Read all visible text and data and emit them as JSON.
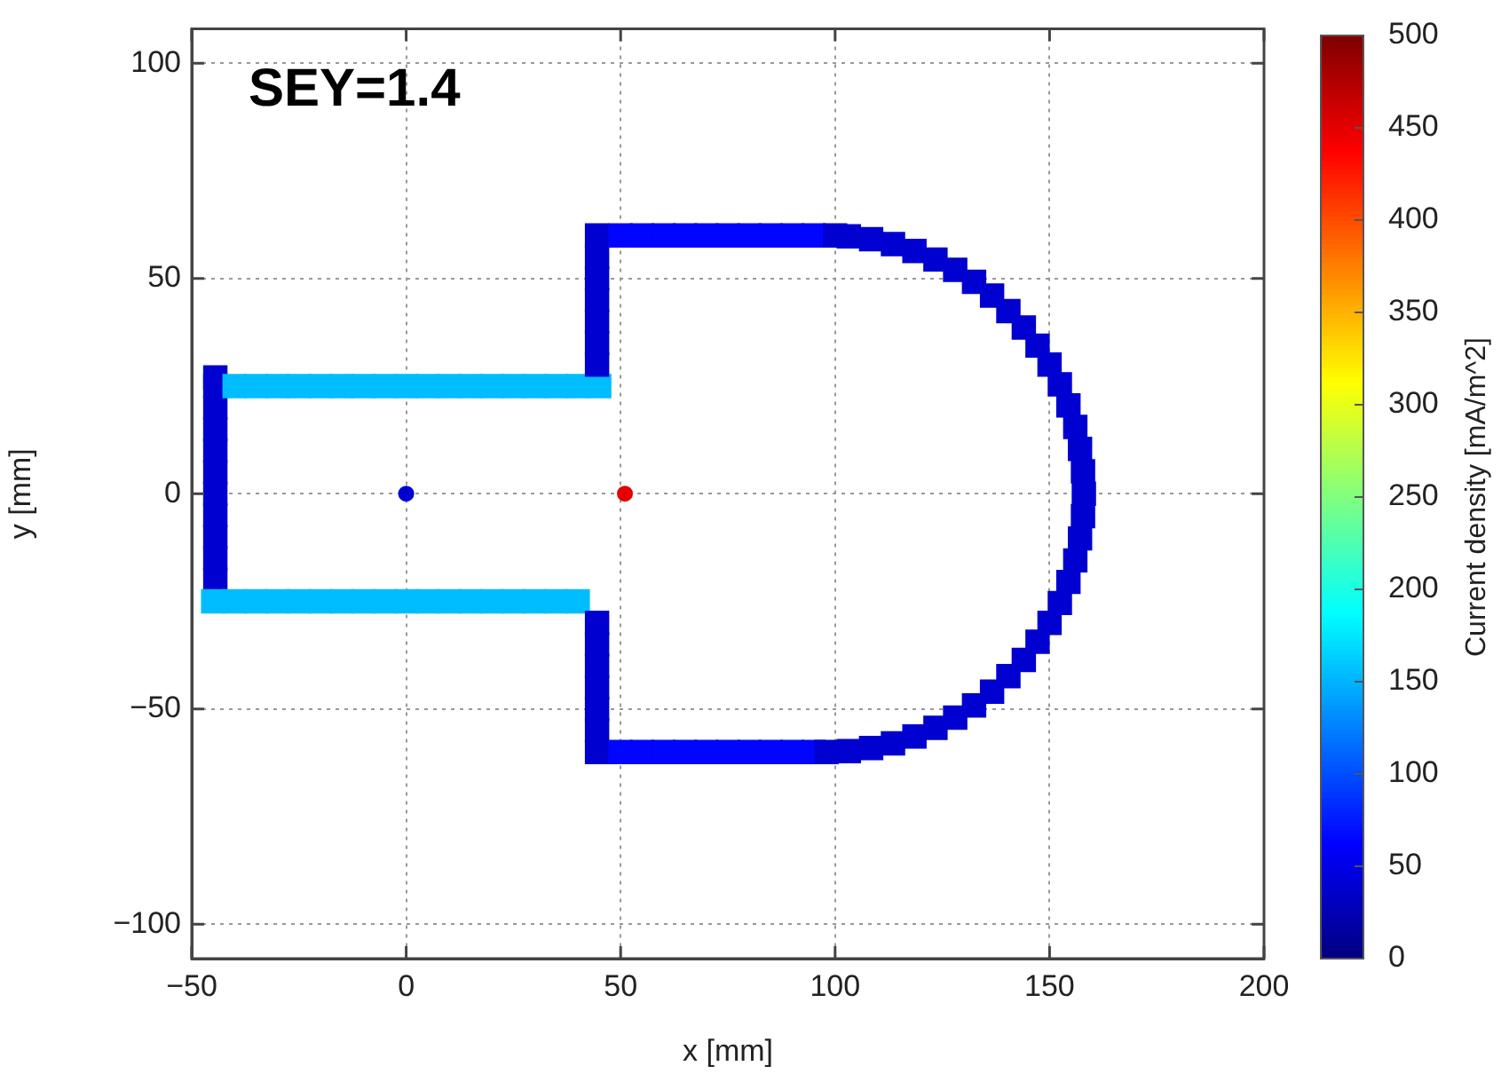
{
  "chart_data": {
    "type": "scatter",
    "xlabel": "x [mm]",
    "ylabel": "y [mm]",
    "clabel": "Current density [mA/m^2]",
    "annotations": [
      "SEY=1.4"
    ],
    "xlim": [
      -50,
      200
    ],
    "xticks": [
      -50,
      0,
      50,
      100,
      150,
      200
    ],
    "ylim": [
      -108,
      108
    ],
    "yticks": [
      -100,
      -50,
      0,
      50,
      100
    ],
    "clim": [
      0,
      500
    ],
    "cticks": [
      0,
      50,
      100,
      150,
      200,
      250,
      300,
      350,
      400,
      450,
      500
    ],
    "grid": true,
    "legend": false,
    "series": [
      {
        "marker": "square",
        "x": [
          -44.5,
          -44.5,
          -44.5,
          -44.5,
          -44.5,
          -44.5,
          -44.5,
          -44.5,
          -44.5,
          -44.5,
          -44.5,
          -40,
          -35,
          -30,
          -25,
          -20,
          -15,
          -10,
          -5,
          0,
          5,
          10,
          15,
          20,
          25,
          30,
          35,
          40,
          45,
          -45,
          -40,
          -35,
          -30,
          -25,
          -20,
          -15,
          -10,
          -5,
          0,
          5,
          10,
          15,
          20,
          25,
          30,
          35,
          40,
          44.5,
          44.5,
          44.5,
          44.5,
          44.5,
          44.5,
          44.5,
          44.5,
          44.5,
          44.5,
          44.5,
          44.5,
          44.5,
          44.5,
          50,
          55,
          60,
          65,
          70,
          75,
          80,
          85,
          90,
          95,
          100,
          50,
          55,
          60,
          65,
          70,
          75,
          80,
          85,
          90,
          95,
          103.2,
          108.4,
          113.5,
          118.5,
          123.4,
          128.0,
          132.4,
          136.6,
          140.4,
          144.0,
          147.2,
          150.0,
          152.4,
          154.4,
          156.0,
          157.1,
          157.8,
          158.0,
          157.8,
          157.1,
          156.0,
          154.4,
          152.4,
          150.0,
          147.2,
          144.0,
          140.4,
          136.6,
          132.4,
          128.0,
          123.4,
          118.5,
          113.5,
          108.4,
          103.2,
          98
        ],
        "values": [
          -20,
          -15,
          -10,
          -5,
          0,
          5,
          10,
          15,
          20,
          25,
          27,
          25,
          25,
          25,
          25,
          25,
          25,
          25,
          25,
          25,
          25,
          25,
          25,
          25,
          25,
          25,
          25,
          25,
          25,
          -25,
          -25,
          -25,
          -25,
          -25,
          -25,
          -25,
          -25,
          -25,
          -25,
          -25,
          -25,
          -25,
          -25,
          -25,
          -25,
          -25,
          -25,
          30,
          35,
          40,
          45,
          50,
          55,
          60,
          -30,
          -35,
          -40,
          -45,
          -50,
          -55,
          -60,
          60,
          60,
          60,
          60,
          60,
          60,
          60,
          60,
          60,
          60,
          60,
          -60,
          -60,
          -60,
          -60,
          -60,
          -60,
          -60,
          -60,
          -60,
          -60,
          59.8,
          59.1,
          58.0,
          56.4,
          54.4,
          52.0,
          49.2,
          46.0,
          42.4,
          38.6,
          34.4,
          30.0,
          25.4,
          20.5,
          15.5,
          10.4,
          5.2,
          0,
          -5.2,
          -10.4,
          -15.5,
          -20.5,
          -25.4,
          -30.0,
          -34.4,
          -38.6,
          -42.4,
          -46.0,
          -49.2,
          -52.0,
          -54.4,
          -56.4,
          -58.0,
          -59.1,
          -59.8,
          -60
        ],
        "colors": [
          "#0000d1",
          "#0000d1",
          "#0000d1",
          "#0000d1",
          "#0000d1",
          "#0000d1",
          "#0000d1",
          "#0000d1",
          "#0000d1",
          "#0000d1",
          "#0000d1",
          "#00bdff",
          "#00bdff",
          "#00bdff",
          "#00bdff",
          "#00bdff",
          "#00bdff",
          "#00bdff",
          "#00bdff",
          "#00bdff",
          "#00bdff",
          "#00bdff",
          "#00bdff",
          "#00bdff",
          "#00bdff",
          "#00bdff",
          "#00bdff",
          "#00bdff",
          "#00bdff",
          "#00bdff",
          "#00bdff",
          "#00bdff",
          "#00bdff",
          "#00bdff",
          "#00bdff",
          "#00bdff",
          "#00bdff",
          "#00bdff",
          "#00bdff",
          "#00bdff",
          "#00bdff",
          "#00bdff",
          "#00bdff",
          "#00bdff",
          "#00bdff",
          "#00bdff",
          "#00bdff",
          "#0000d1",
          "#0000d1",
          "#0000d1",
          "#0000d1",
          "#0000d1",
          "#0000d1",
          "#0000d1",
          "#0000d1",
          "#0000d1",
          "#0000d1",
          "#0000d1",
          "#0000d1",
          "#0000d1",
          "#0000d1",
          "#0005ff",
          "#0005ff",
          "#0005ff",
          "#0005ff",
          "#0005ff",
          "#0005ff",
          "#0005ff",
          "#0005ff",
          "#0005ff",
          "#0005ff",
          "#0000d1",
          "#0005ff",
          "#0005ff",
          "#0005ff",
          "#0005ff",
          "#0005ff",
          "#0005ff",
          "#0005ff",
          "#0005ff",
          "#0005ff",
          "#0005ff",
          "#0000d1",
          "#0000d1",
          "#0000d1",
          "#0000d1",
          "#0000d1",
          "#0000d1",
          "#0000d1",
          "#0000d1",
          "#0000d1",
          "#0000d1",
          "#0000d1",
          "#0000d1",
          "#0000d1",
          "#0000d1",
          "#0000d1",
          "#0000d1",
          "#0000d1",
          "#0000d1",
          "#0000d1",
          "#0000d1",
          "#0000d1",
          "#0000d1",
          "#0000d1",
          "#0000d1",
          "#0000d1",
          "#0000d1",
          "#0000d1",
          "#0000d1",
          "#0000d1",
          "#0000d1",
          "#0000d1",
          "#0000d1",
          "#0000d1",
          "#0000d1",
          "#0000d1",
          "#0000d1"
        ],
        "cvalues": [
          40,
          40,
          40,
          40,
          40,
          40,
          40,
          40,
          40,
          40,
          40,
          155,
          155,
          155,
          155,
          155,
          155,
          155,
          155,
          155,
          155,
          155,
          155,
          155,
          155,
          155,
          155,
          155,
          155,
          155,
          155,
          155,
          155,
          155,
          155,
          155,
          155,
          155,
          155,
          155,
          155,
          155,
          155,
          155,
          155,
          155,
          155,
          40,
          40,
          40,
          40,
          40,
          40,
          40,
          40,
          40,
          40,
          40,
          40,
          40,
          40,
          65,
          65,
          65,
          65,
          65,
          65,
          65,
          65,
          65,
          65,
          40,
          65,
          65,
          65,
          65,
          65,
          65,
          65,
          65,
          65,
          65,
          40,
          40,
          40,
          40,
          40,
          40,
          40,
          40,
          40,
          40,
          40,
          40,
          40,
          40,
          40,
          40,
          40,
          40,
          40,
          40,
          40,
          40,
          40,
          40,
          40,
          40,
          40,
          40,
          40,
          40,
          40,
          40,
          40,
          40,
          40,
          40
        ]
      },
      {
        "marker": "circle",
        "x": [
          0,
          51
        ],
        "values": [
          0,
          0
        ],
        "cvalues": [
          40,
          450
        ],
        "colors": [
          "#0000d1",
          "#e60000"
        ]
      }
    ]
  }
}
